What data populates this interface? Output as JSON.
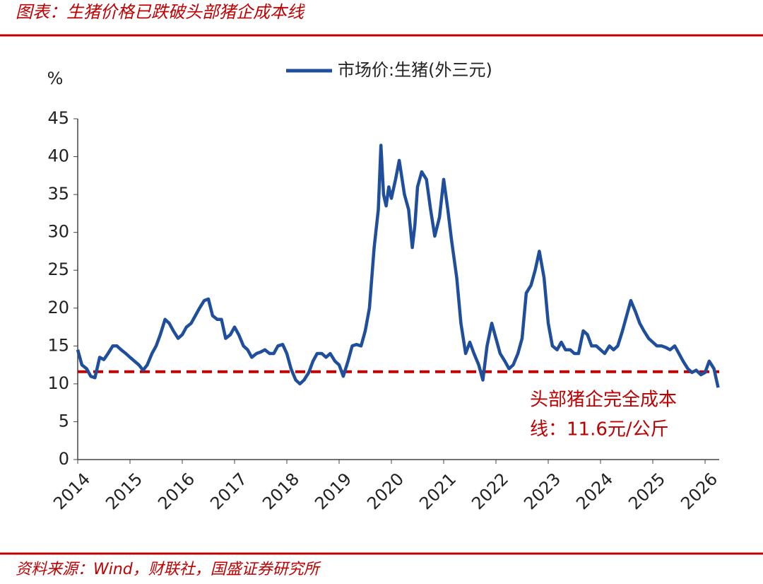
{
  "chart_data": {
    "type": "line",
    "title": "图表：生猪价格已跌破头部猪企成本线",
    "source": "资料来源：Wind，财联社，国盛证券研究所",
    "y_label": "%",
    "annotation": [
      "头部猪企完全成本",
      "线：11.6元/公斤"
    ],
    "hline": {
      "value": 11.6,
      "color": "#c00000"
    },
    "xlim": [
      2014,
      2026.27
    ],
    "xticks": [
      2014,
      2015,
      2016,
      2017,
      2018,
      2019,
      2020,
      2021,
      2022,
      2023,
      2024,
      2025,
      2026
    ],
    "ylim": [
      0,
      45
    ],
    "yticks": [
      0,
      5,
      10,
      15,
      20,
      25,
      30,
      35,
      40,
      45
    ],
    "x": [
      2014.0,
      2014.08,
      2014.17,
      2014.25,
      2014.33,
      2014.42,
      2014.5,
      2014.58,
      2014.67,
      2014.75,
      2014.83,
      2014.92,
      2015.0,
      2015.17,
      2015.25,
      2015.33,
      2015.42,
      2015.5,
      2015.58,
      2015.67,
      2015.75,
      2015.83,
      2015.92,
      2016.0,
      2016.08,
      2016.17,
      2016.25,
      2016.33,
      2016.42,
      2016.5,
      2016.58,
      2016.67,
      2016.75,
      2016.83,
      2016.92,
      2017.0,
      2017.08,
      2017.17,
      2017.25,
      2017.33,
      2017.42,
      2017.5,
      2017.58,
      2017.67,
      2017.75,
      2017.83,
      2017.92,
      2018.0,
      2018.08,
      2018.17,
      2018.25,
      2018.33,
      2018.42,
      2018.5,
      2018.58,
      2018.67,
      2018.75,
      2018.83,
      2018.92,
      2019.0,
      2019.08,
      2019.17,
      2019.25,
      2019.33,
      2019.42,
      2019.5,
      2019.58,
      2019.67,
      2019.75,
      2019.8,
      2019.85,
      2019.9,
      2019.95,
      2020.0,
      2020.08,
      2020.15,
      2020.25,
      2020.33,
      2020.4,
      2020.45,
      2020.5,
      2020.58,
      2020.67,
      2020.75,
      2020.83,
      2020.92,
      2021.0,
      2021.08,
      2021.15,
      2021.25,
      2021.33,
      2021.42,
      2021.5,
      2021.58,
      2021.67,
      2021.75,
      2021.83,
      2021.92,
      2022.0,
      2022.08,
      2022.17,
      2022.25,
      2022.33,
      2022.42,
      2022.5,
      2022.58,
      2022.67,
      2022.75,
      2022.83,
      2022.92,
      2023.0,
      2023.08,
      2023.17,
      2023.25,
      2023.33,
      2023.42,
      2023.5,
      2023.58,
      2023.67,
      2023.75,
      2023.83,
      2023.92,
      2024.0,
      2024.08,
      2024.17,
      2024.25,
      2024.33,
      2024.42,
      2024.5,
      2024.58,
      2024.67,
      2024.75,
      2024.83,
      2024.92,
      2025.0,
      2025.08,
      2025.17,
      2025.25,
      2025.33,
      2025.42,
      2025.5,
      2025.58,
      2025.67,
      2025.75,
      2025.83,
      2025.92,
      2026.0,
      2026.08,
      2026.17,
      2026.25
    ],
    "series": [
      {
        "name": "市场价:生猪(外三元)",
        "color": "#1f4e9c",
        "values": [
          14.5,
          12.5,
          12,
          11,
          10.8,
          13.5,
          13.2,
          14,
          15,
          15,
          14.5,
          14,
          13.5,
          12.5,
          11.8,
          12.5,
          14,
          15,
          16.5,
          18.5,
          18,
          17,
          16,
          16.5,
          17.5,
          18,
          19,
          20,
          21,
          21.2,
          19,
          18.5,
          18.5,
          16,
          16.5,
          17.5,
          16.5,
          15,
          14.5,
          13.5,
          14,
          14.2,
          14.5,
          14,
          14,
          15,
          15.2,
          14,
          12,
          10.5,
          10,
          10.5,
          11.5,
          13,
          14,
          14,
          13.5,
          14,
          13,
          12.5,
          11,
          13,
          15,
          15.2,
          15,
          17,
          20,
          28,
          33,
          41.5,
          35,
          33.5,
          36,
          34.5,
          37,
          39.5,
          35,
          33,
          28,
          31,
          36,
          38,
          37,
          33,
          29.5,
          32,
          37,
          33,
          29,
          24,
          18,
          14,
          15.5,
          14,
          12.5,
          10.5,
          15,
          18,
          16,
          14,
          13,
          12,
          12.5,
          14,
          16,
          22,
          23,
          25,
          27.5,
          24,
          18,
          15,
          14.5,
          15.5,
          14.5,
          14.5,
          14,
          14,
          17,
          16.5,
          15,
          15,
          14.5,
          14,
          15,
          14.5,
          15,
          17,
          19,
          21,
          19.5,
          18,
          17,
          16,
          15.5,
          15,
          15,
          14.8,
          14.5,
          15,
          14,
          13,
          12,
          11.5,
          11.8,
          11.2,
          11.5,
          13,
          12,
          9.5
        ]
      }
    ]
  }
}
